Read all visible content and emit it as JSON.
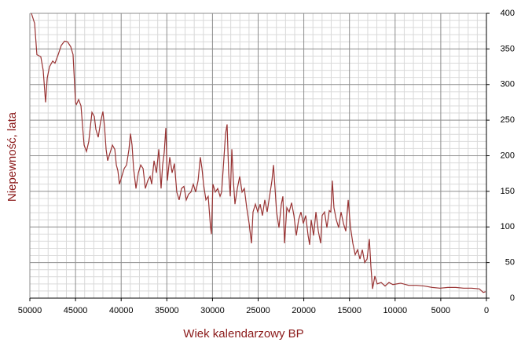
{
  "chart_data": {
    "type": "line",
    "xlabel": "Wiek kalendarzowy BP",
    "ylabel": "Niepewność, lata",
    "x": [
      49830,
      49480,
      49230,
      48800,
      48540,
      48280,
      48100,
      47850,
      47500,
      47250,
      46900,
      46560,
      46200,
      45870,
      45520,
      45270,
      45000,
      44900,
      44660,
      44400,
      44230,
      44060,
      43800,
      43550,
      43200,
      42940,
      42770,
      42510,
      42250,
      42000,
      41830,
      41650,
      41480,
      41220,
      40960,
      40700,
      40530,
      40360,
      40190,
      39930,
      39670,
      39410,
      39150,
      38980,
      38810,
      38640,
      38380,
      38120,
      37860,
      37600,
      37350,
      37090,
      36830,
      36660,
      36400,
      36140,
      35880,
      35630,
      35460,
      35290,
      35110,
      34940,
      34680,
      34420,
      34170,
      33910,
      33650,
      33390,
      33130,
      32870,
      32620,
      32360,
      32100,
      31840,
      31580,
      31330,
      31150,
      30980,
      30720,
      30470,
      30210,
      30120,
      29950,
      29690,
      29430,
      29170,
      29000,
      28740,
      28570,
      28400,
      28230,
      28050,
      27880,
      27710,
      27540,
      27280,
      27020,
      26760,
      26510,
      26250,
      25990,
      25730,
      25560,
      25300,
      25040,
      24780,
      24530,
      24270,
      24010,
      23750,
      23490,
      23320,
      23150,
      22980,
      22720,
      22460,
      22290,
      22110,
      21860,
      21600,
      21340,
      21080,
      20820,
      20570,
      20310,
      20050,
      19790,
      19530,
      19360,
      19190,
      18930,
      18670,
      18410,
      18150,
      17990,
      17730,
      17470,
      17210,
      17040,
      16870,
      16700,
      16440,
      16180,
      15920,
      15660,
      15400,
      15140,
      14880,
      14630,
      14370,
      14110,
      13850,
      13590,
      13330,
      13070,
      12820,
      12650,
      12470,
      12220,
      11960,
      11530,
      11100,
      10670,
      10240,
      9380,
      8520,
      7660,
      6800,
      5940,
      5080,
      4220,
      3360,
      2500,
      1640,
      780,
      350,
      90
    ],
    "series": [
      {
        "color": "#993333",
        "values": [
          400,
          386,
          342,
          339,
          320,
          275,
          309,
          325,
          333,
          330,
          342,
          355,
          361,
          360,
          353,
          342,
          275,
          272,
          279,
          270,
          242,
          215,
          206,
          220,
          261,
          255,
          237,
          226,
          248,
          262,
          242,
          209,
          193,
          204,
          215,
          209,
          187,
          179,
          160,
          171,
          182,
          187,
          209,
          231,
          215,
          182,
          154,
          176,
          187,
          182,
          154,
          165,
          171,
          160,
          193,
          176,
          209,
          154,
          187,
          204,
          239,
          165,
          198,
          176,
          189,
          149,
          138,
          154,
          157,
          138,
          146,
          149,
          160,
          149,
          165,
          198,
          182,
          160,
          138,
          143,
          99,
          90,
          160,
          149,
          154,
          143,
          149,
          198,
          231,
          244,
          176,
          143,
          209,
          165,
          132,
          154,
          171,
          149,
          154,
          127,
          105,
          77,
          121,
          132,
          121,
          132,
          116,
          138,
          121,
          143,
          165,
          187,
          154,
          121,
          99,
          132,
          143,
          77,
          127,
          121,
          134,
          116,
          88,
          110,
          121,
          105,
          116,
          88,
          75,
          110,
          88,
          121,
          94,
          77,
          116,
          121,
          99,
          123,
          121,
          165,
          127,
          110,
          99,
          121,
          105,
          94,
          138,
          99,
          77,
          61,
          68,
          55,
          68,
          50,
          55,
          83,
          44,
          13,
          31,
          20,
          22,
          17,
          22,
          19,
          21,
          18,
          18,
          17,
          15,
          14,
          15,
          15,
          14,
          14,
          13,
          8,
          9
        ]
      }
    ],
    "xlim": [
      50000,
      0
    ],
    "xticks": [
      50000,
      45000,
      40000,
      35000,
      30000,
      25000,
      20000,
      15000,
      10000,
      5000,
      0
    ],
    "ylim": [
      0,
      400
    ],
    "yticks": [
      0,
      50,
      100,
      150,
      200,
      250,
      300,
      350,
      400
    ],
    "yaxis_position": "right",
    "grid": true,
    "minor_grid": true
  }
}
